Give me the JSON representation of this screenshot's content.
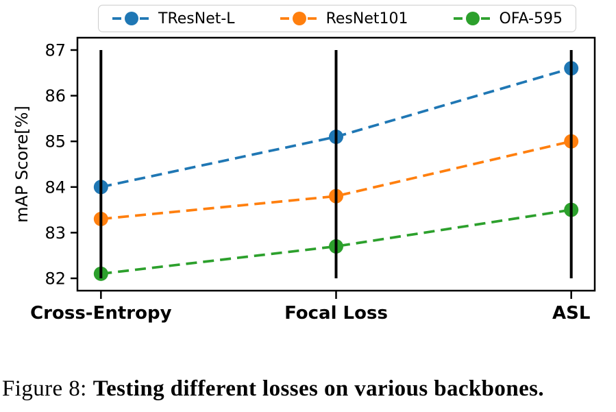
{
  "figure": {
    "caption_prefix": "Figure 8:",
    "caption_title": "Testing different losses on various backbones."
  },
  "chart_data": {
    "type": "line",
    "title": "",
    "xlabel": "",
    "ylabel": "mAP Score[%]",
    "categories": [
      "Cross-Entropy",
      "Focal Loss",
      "ASL"
    ],
    "series": [
      {
        "name": "TResNet-L",
        "color": "#1f77b4",
        "values": [
          84.0,
          85.1,
          86.6
        ]
      },
      {
        "name": "ResNet101",
        "color": "#ff7f0e",
        "values": [
          83.3,
          83.8,
          85.0
        ]
      },
      {
        "name": "OFA-595",
        "color": "#2ca02c",
        "values": [
          82.1,
          82.7,
          83.5
        ]
      }
    ],
    "yticks": [
      82,
      83,
      84,
      85,
      86,
      87
    ],
    "ylim": [
      81.73,
      87.27
    ],
    "xlim": [
      -0.1,
      2.1
    ],
    "vlines": {
      "y_min": 82,
      "y_max": 87,
      "color": "#000000"
    },
    "style": {
      "line": "dashed",
      "marker": "circle",
      "grid": false,
      "legend_position": "top-center",
      "axis_color": "#000000"
    }
  }
}
